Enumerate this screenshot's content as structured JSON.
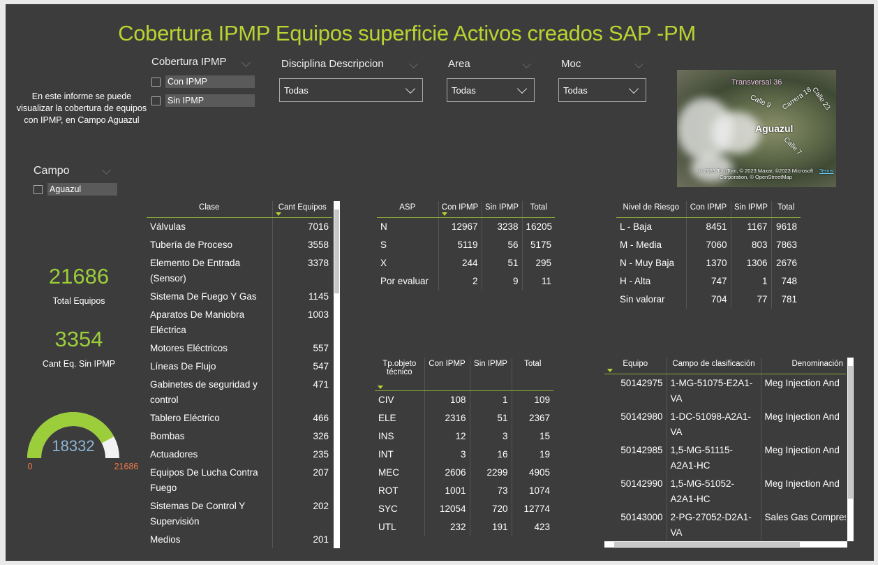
{
  "header": {
    "title": "Cobertura IPMP Equipos superficie Activos creados SAP -PM",
    "description": "En este informe se puede visualizar la cobertura de equipos con IPMP, en Campo Aguazul"
  },
  "slicers": {
    "cobertura": {
      "title": "Cobertura IPMP",
      "options": [
        "Con IPMP",
        "Sin IPMP"
      ]
    },
    "disciplina": {
      "title": "Disciplina Descripcion",
      "value": "Todas"
    },
    "area": {
      "title": "Area",
      "value": "Todas"
    },
    "moc": {
      "title": "Moc",
      "value": "Todas"
    },
    "campo": {
      "title": "Campo",
      "options": [
        "Aguazul"
      ]
    }
  },
  "kpis": [
    {
      "value": 21686,
      "label": "Total Equipos"
    },
    {
      "value": 3354,
      "label": "Cant Eq. Sin IPMP"
    }
  ],
  "gauge": {
    "value": 18332,
    "min": 0,
    "max": 21686
  },
  "map": {
    "labels": [
      "Transversal 36",
      "Calle 9",
      "Carrera 18",
      "Calle 23",
      "Aguazul",
      "Calle 7"
    ],
    "attribution": "© 2023 TomTom, © 2023 Maxar, ©2023 Microsoft Corporation, © OpenStreetMap",
    "terms": "Terms"
  },
  "tables": {
    "clase": {
      "columns": [
        "Clase",
        "Cant Equipos"
      ],
      "rows": [
        [
          "Válvulas",
          7016
        ],
        [
          "Tubería de Proceso",
          3558
        ],
        [
          "Elemento De Entrada (Sensor)",
          3378
        ],
        [
          "Sistema De Fuego Y Gas",
          1145
        ],
        [
          "Aparatos De Maniobra Eléctrica",
          1003
        ],
        [
          "Motores Eléctricos",
          557
        ],
        [
          "Líneas De Flujo",
          547
        ],
        [
          "Gabinetes de seguridad y control",
          471
        ],
        [
          "Tablero Eléctrico",
          466
        ],
        [
          "Bombas",
          326
        ],
        [
          "Actuadores",
          235
        ],
        [
          "Equipos De Lucha Contra Fuego",
          207
        ],
        [
          "Sistemas De Control Y Supervisión",
          202
        ],
        [
          "Medios",
          201
        ]
      ]
    },
    "asp": {
      "columns": [
        "ASP",
        "Con IPMP",
        "Sin IPMP",
        "Total"
      ],
      "rows": [
        [
          "N",
          12967,
          3238,
          16205
        ],
        [
          "S",
          5119,
          56,
          5175
        ],
        [
          "X",
          244,
          51,
          295
        ],
        [
          "Por evaluar",
          2,
          9,
          11
        ]
      ]
    },
    "nivel": {
      "columns": [
        "Nivel de Riesgo",
        "Con IPMP",
        "Sin IPMP",
        "Total"
      ],
      "rows": [
        [
          "L - Baja",
          8451,
          1167,
          9618
        ],
        [
          "M - Media",
          7060,
          803,
          7863
        ],
        [
          "N - Muy Baja",
          1370,
          1306,
          2676
        ],
        [
          "H - Alta",
          747,
          1,
          748
        ],
        [
          "Sin valorar",
          704,
          77,
          781
        ]
      ]
    },
    "tipo": {
      "columns": [
        "Tp.objeto técnico",
        "Con IPMP",
        "Sin IPMP",
        "Total"
      ],
      "rows": [
        [
          "CIV",
          108,
          1,
          109
        ],
        [
          "ELE",
          2316,
          51,
          2367
        ],
        [
          "INS",
          12,
          3,
          15
        ],
        [
          "INT",
          3,
          16,
          19
        ],
        [
          "MEC",
          2606,
          2299,
          4905
        ],
        [
          "ROT",
          1001,
          73,
          1074
        ],
        [
          "SYC",
          12054,
          720,
          12774
        ],
        [
          "UTL",
          232,
          191,
          423
        ]
      ]
    },
    "equipos": {
      "columns": [
        "Equipo",
        "Campo de clasificación",
        "Denominación"
      ],
      "rows": [
        [
          50142975,
          "1-MG-51075-E2A1-VA",
          "Meg Injection And"
        ],
        [
          50142980,
          "1-DC-51098-A2A1-VA",
          "Meg Injection And"
        ],
        [
          50142985,
          "1,5-MG-51115-A2A1-HC",
          "Meg Injection And"
        ],
        [
          50142990,
          "1,5-MG-51052-A2A1-HC",
          "Meg Injection And"
        ],
        [
          50143000,
          "2-PG-27052-D2A1-VA",
          "Sales Gas Compressor"
        ]
      ]
    }
  }
}
